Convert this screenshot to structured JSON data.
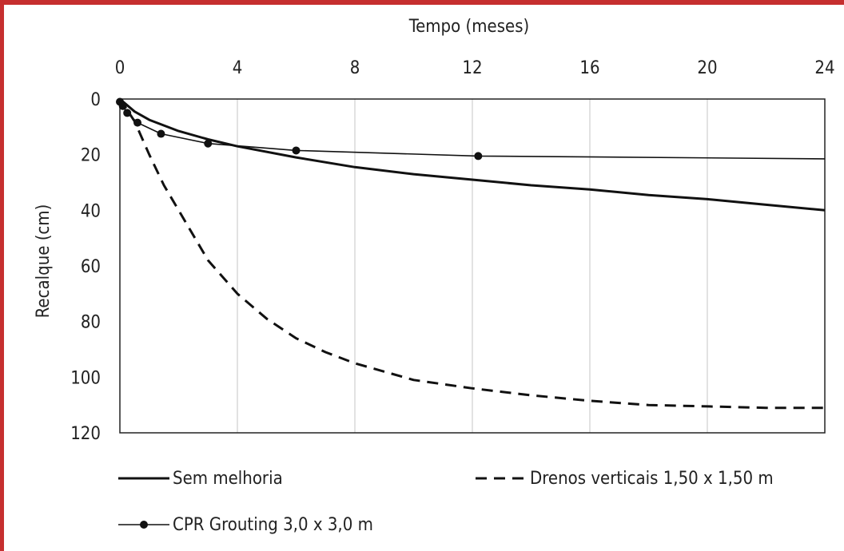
{
  "chart_data": {
    "type": "line",
    "title": "",
    "xlabel": "Tempo (meses)",
    "ylabel": "Recalque (cm)",
    "xlim": [
      0,
      24
    ],
    "ylim": [
      0,
      120
    ],
    "x_ticks": [
      0,
      4,
      8,
      12,
      16,
      20,
      24
    ],
    "y_ticks": [
      0,
      20,
      40,
      60,
      80,
      100,
      120
    ],
    "y_inverted": true,
    "x_axis_position": "top",
    "grid": "vertical",
    "legend_position": "bottom",
    "series": [
      {
        "name": "Sem melhoria",
        "style": "solid",
        "markers": false,
        "x": [
          0,
          0.5,
          1,
          2,
          3,
          4,
          6,
          8,
          10,
          12,
          14,
          16,
          18,
          20,
          22,
          24
        ],
        "y": [
          0,
          4.5,
          7.5,
          11.5,
          14.5,
          17,
          21,
          24.5,
          27,
          29,
          31,
          32.5,
          34.5,
          36,
          38,
          40
        ]
      },
      {
        "name": "Drenos verticais 1,50 x 1,50 m",
        "style": "dashed",
        "markers": false,
        "x": [
          0,
          0.25,
          0.5,
          1,
          1.5,
          2,
          3,
          4,
          5,
          6,
          7,
          8,
          10,
          12,
          14,
          16,
          18,
          20,
          22,
          24
        ],
        "y": [
          0,
          4,
          8,
          20,
          31,
          40,
          58,
          70,
          79,
          86,
          91,
          95,
          101,
          104,
          106.5,
          108.5,
          110,
          110.5,
          111,
          111
        ]
      },
      {
        "name": "CPR Grouting 3,0 x 3,0 m",
        "style": "solid",
        "markers": true,
        "x": [
          0,
          0.1,
          0.25,
          0.6,
          1.4,
          3,
          6,
          12.2,
          24
        ],
        "y": [
          1,
          2.5,
          5,
          8.5,
          12.5,
          16,
          18.5,
          20.5,
          21.5
        ],
        "marker_points": [
          0,
          1,
          2,
          3,
          4,
          5,
          6,
          7
        ]
      }
    ]
  }
}
